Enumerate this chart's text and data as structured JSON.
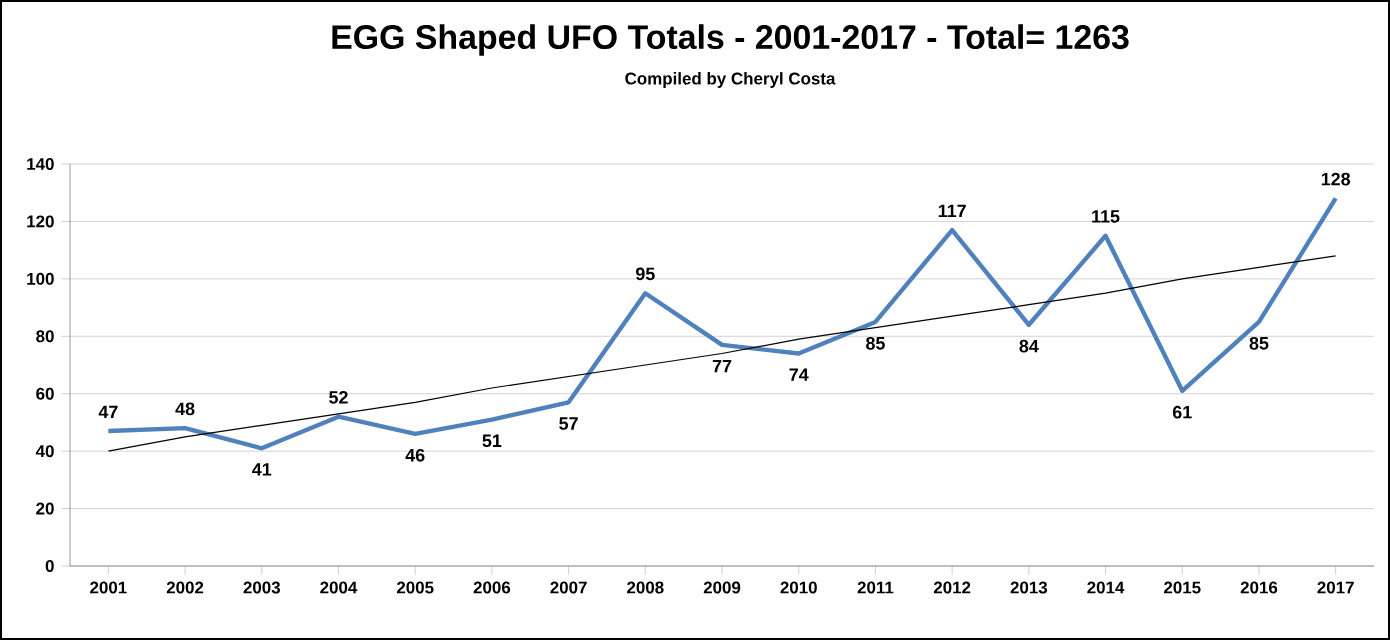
{
  "chart_data": {
    "type": "line",
    "title": "EGG Shaped UFO Totals - 2001-2017 - Total= 1263",
    "subtitle": "Compiled by Cheryl Costa",
    "categories": [
      "2001",
      "2002",
      "2003",
      "2004",
      "2005",
      "2006",
      "2007",
      "2008",
      "2009",
      "2010",
      "2011",
      "2012",
      "2013",
      "2014",
      "2015",
      "2016",
      "2017"
    ],
    "series": [
      {
        "color": "#4f81bd",
        "values": [
          47,
          48,
          41,
          52,
          46,
          51,
          57,
          95,
          77,
          74,
          85,
          117,
          84,
          115,
          61,
          85,
          128
        ],
        "value_labels": [
          "47",
          "48",
          "41",
          "52",
          "46",
          "51",
          "57",
          "95",
          "77",
          "74",
          "85",
          "117",
          "84",
          "115",
          "61",
          "85",
          "128"
        ]
      },
      {
        "type": "line",
        "color": "#000000",
        "values": [
          40,
          45,
          49,
          53,
          57,
          62,
          66,
          70,
          74,
          79,
          83,
          87,
          91,
          95,
          100,
          104,
          108
        ]
      }
    ],
    "ylim": [
      0,
      140
    ],
    "yticks": [
      0,
      20,
      40,
      60,
      80,
      100,
      120,
      140
    ],
    "grid": "y",
    "marker": "none",
    "line_style": "solid"
  }
}
